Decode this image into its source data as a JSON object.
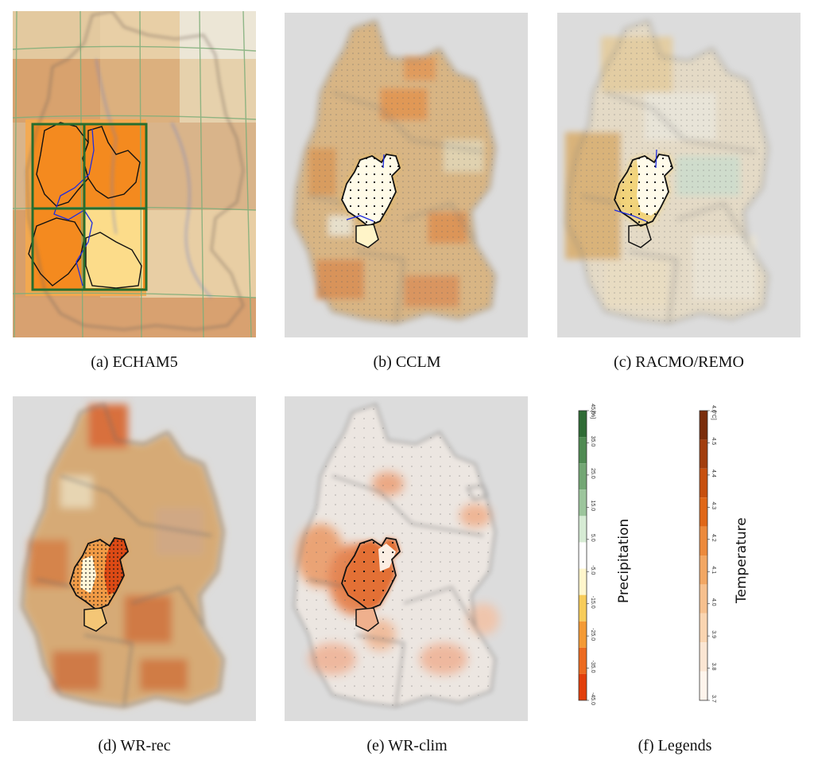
{
  "panels": {
    "a": {
      "caption": "(a)  ECHAM5"
    },
    "b": {
      "caption": "(b)  CCLM"
    },
    "c": {
      "caption": "(c)  RACMO/REMO"
    },
    "d": {
      "caption": "(d)  WR-rec"
    },
    "e": {
      "caption": "(e)  WR-clim"
    },
    "f": {
      "caption": "(f)  Legends"
    }
  },
  "legends": {
    "precipitation": {
      "title": "Precipitation",
      "unit": "[%]",
      "ticks": [
        "45.0",
        "35.0",
        "25.0",
        "15.0",
        "5.0",
        "-5.0",
        "-15.0",
        "-25.0",
        "-35.0",
        "-45.0"
      ],
      "colors": [
        "#2f6b35",
        "#4f8a52",
        "#73a674",
        "#9cc59c",
        "#d6ebd4",
        "#ffffff",
        "#fff6cc",
        "#f7cc5a",
        "#f49a35",
        "#ec6a20",
        "#e23e0b"
      ]
    },
    "temperature": {
      "title": "Temperature",
      "unit": "[°C]",
      "ticks": [
        "4.6",
        "4.5",
        "4.4",
        "4.3",
        "4.2",
        "4.1",
        "4.0",
        "3.9",
        "3.8",
        "3.7"
      ],
      "colors": [
        "#7a2d0c",
        "#a23e0e",
        "#c7500f",
        "#e06718",
        "#ec8a3c",
        "#f2a763",
        "#f6c08e",
        "#f9d5b1",
        "#fbe6d3",
        "#fef4ec"
      ]
    }
  },
  "colors": {
    "map_background": "#dcdcdc",
    "echam_background": "#d9b48a",
    "region_outline": "#111111",
    "rivers": "#2a3ccf",
    "grid_lines": "#2e7d3a"
  }
}
